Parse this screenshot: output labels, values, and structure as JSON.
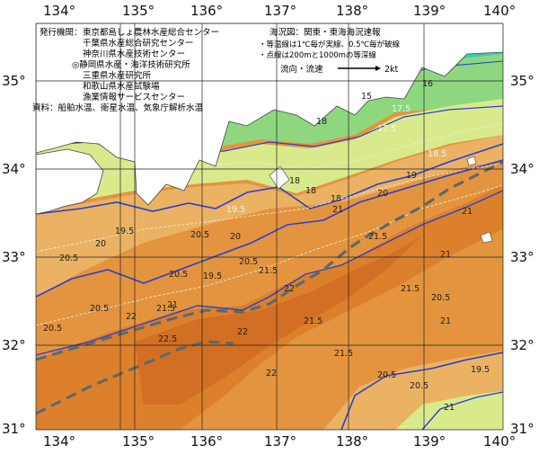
{
  "map": {
    "lon_labels": [
      "134°",
      "135°",
      "136°",
      "137°",
      "138°",
      "139°",
      "140°"
    ],
    "lat_labels": [
      "35°",
      "34°",
      "33°",
      "32°",
      "31°"
    ],
    "publisher": {
      "heading": "発行機関：",
      "orgs": [
        "東京都島しょ農林水産総合センター",
        "千葉県水産総合研究センター",
        "神奈川県水産技術センター",
        "◎静岡県水産・海洋技術研究所",
        "三重県水産研究所",
        "和歌山県水産試験場",
        "漁業情報サービスセンター"
      ],
      "source": "資料：船舶水温、衛星水温、気象庁解析水温"
    },
    "legend": {
      "title": "海況図：関東・東海海況速報",
      "isotherm_note": "・等温線は1℃毎が実線、0.5℃毎が破線",
      "isobath_note": "・点線は200mと1000mの等深線",
      "flow_label": "流向・流速",
      "flow_unit": "2kt"
    },
    "contour_labels": [
      "15",
      "16",
      "17.5",
      "17.5",
      "18",
      "18",
      "18",
      "18",
      "18.5",
      "19",
      "19.5",
      "19.5",
      "20",
      "20",
      "20",
      "20.5",
      "20.5",
      "20.5",
      "20.5",
      "20.5",
      "20.5",
      "20.5",
      "20.5",
      "21",
      "21",
      "21",
      "21",
      "21",
      "21.5",
      "21.5",
      "21.5",
      "21.5",
      "21.5",
      "21.5",
      "22",
      "22",
      "22",
      "22",
      "22.5",
      "19.5",
      "19.5",
      "20.5",
      "21"
    ],
    "colors": {
      "land": "#ffffff",
      "cold": "#3ec9ba",
      "cool": "#8fd77f",
      "mild": "#d8ea8c",
      "warm": "#ebb263",
      "warmer": "#e4943e",
      "hot": "#dc802c",
      "hottest": "#d26f24",
      "isotherm": "#2b3fd0",
      "kuroshio_axis": "#5d6a6a"
    }
  }
}
